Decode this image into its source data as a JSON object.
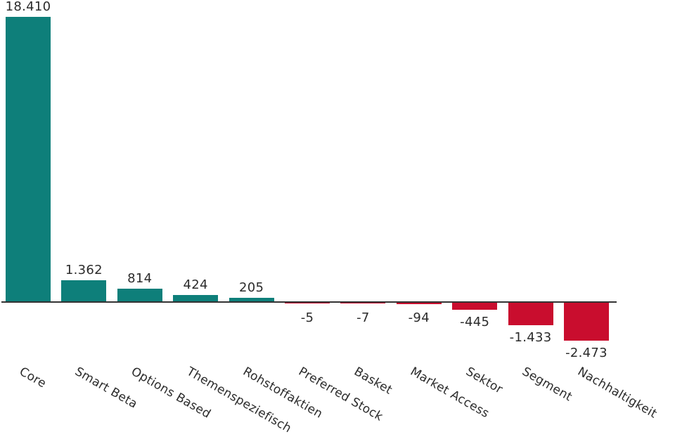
{
  "chart_data": {
    "type": "bar",
    "categories": [
      "Core",
      "Smart Beta",
      "Options Based",
      "Themenspeziefisch",
      "Rohstoffaktien",
      "Preferred Stock",
      "Basket",
      "Market Access",
      "Sektor",
      "Segment",
      "Nachhaltigkeit"
    ],
    "values": [
      18410,
      1362,
      814,
      424,
      205,
      -5,
      -7,
      -94,
      -445,
      -1433,
      -2473
    ],
    "value_labels": [
      "18.410",
      "1.362",
      "814",
      "424",
      "205",
      "-5",
      "-7",
      "-94",
      "-445",
      "-1.433",
      "-2.473"
    ],
    "title": "",
    "xlabel": "",
    "ylabel": "",
    "ylim": [
      -2473,
      18410
    ],
    "grid": false,
    "legend": null,
    "colors": {
      "positive": "#0e7f7a",
      "negative": "#c90d2e",
      "axis_line": "#333333",
      "text": "#2b2b2b"
    },
    "category_label_rotation_deg": 30
  }
}
